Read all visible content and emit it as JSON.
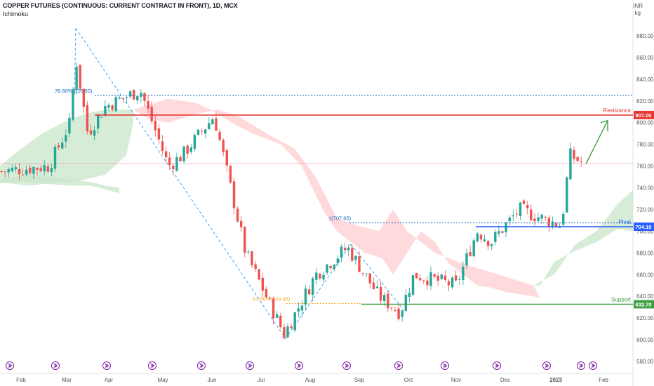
{
  "header": {
    "title": "COPPER FUTURES (CONTINUOUS: CURRENT CONTRACT IN FRONT), 1D, MCX",
    "indicator": "Ichimoku"
  },
  "currency": {
    "unit1": "INR",
    "unit2": "kg"
  },
  "colors": {
    "up": "#26a69a",
    "down": "#ef5350",
    "resistance": "#e53935",
    "pivot": "#2962ff",
    "support": "#43a047",
    "fib": "#1565c0",
    "cloud_bull": "#c8e6c9",
    "cloud_bear": "#ffcdd2",
    "arrow": "#43a047"
  },
  "chart_data": {
    "type": "candlestick",
    "title": "COPPER FUTURES (CONTINUOUS: CURRENT CONTRACT IN FRONT), 1D, MCX",
    "yunit": "INR / kg",
    "ylim": [
      574,
      890
    ],
    "y_ticks": [
      580,
      600,
      620,
      640,
      660,
      680,
      700,
      720,
      740,
      760,
      780,
      800,
      820,
      840,
      860,
      880
    ],
    "x_ticks": [
      "Feb",
      "Mar",
      "Apr",
      "May",
      "Jun",
      "Jul",
      "Aug",
      "Sep",
      "Oct",
      "Nov",
      "Dec",
      "2023",
      "Feb"
    ],
    "current_price": 762,
    "levels": [
      {
        "name": "Resistance",
        "value": 807.0,
        "label": "807.00"
      },
      {
        "name": "Pivot",
        "value": 704.1,
        "label": "704.10"
      },
      {
        "name": "Support",
        "value": 632.7,
        "label": "632.70"
      }
    ],
    "fib_labels": [
      {
        "text": "78.60%(825.00)",
        "value": 825.0
      },
      {
        "text": "1(707.65)",
        "value": 707.65
      },
      {
        "text": "61.80%(633.36)",
        "value": 633.36
      }
    ],
    "swing_points": [
      {
        "date": "Mar",
        "value": 887
      },
      {
        "date": "Jul",
        "value": 601
      },
      {
        "date": "Aug",
        "value": 688
      },
      {
        "date": "Sep",
        "value": 633
      }
    ],
    "price_path": [
      {
        "date": "Feb",
        "value": 755
      },
      {
        "date": "Feb",
        "value": 760
      },
      {
        "date": "Mar",
        "value": 800
      },
      {
        "date": "Mar",
        "value": 860
      },
      {
        "date": "Mar",
        "value": 790
      },
      {
        "date": "Apr",
        "value": 815
      },
      {
        "date": "Apr",
        "value": 830
      },
      {
        "date": "May",
        "value": 760
      },
      {
        "date": "May",
        "value": 770
      },
      {
        "date": "Jun",
        "value": 806
      },
      {
        "date": "Jun",
        "value": 770
      },
      {
        "date": "Jul",
        "value": 680
      },
      {
        "date": "Jul",
        "value": 605
      },
      {
        "date": "Aug",
        "value": 660
      },
      {
        "date": "Aug",
        "value": 685
      },
      {
        "date": "Sep",
        "value": 640
      },
      {
        "date": "Oct",
        "value": 625
      },
      {
        "date": "Oct",
        "value": 660
      },
      {
        "date": "Nov",
        "value": 650
      },
      {
        "date": "Nov",
        "value": 700
      },
      {
        "date": "Dec",
        "value": 690
      },
      {
        "date": "Dec",
        "value": 720
      },
      {
        "date": "2023",
        "value": 705
      },
      {
        "date": "2023",
        "value": 770
      },
      {
        "date": "2023",
        "value": 763
      }
    ]
  }
}
